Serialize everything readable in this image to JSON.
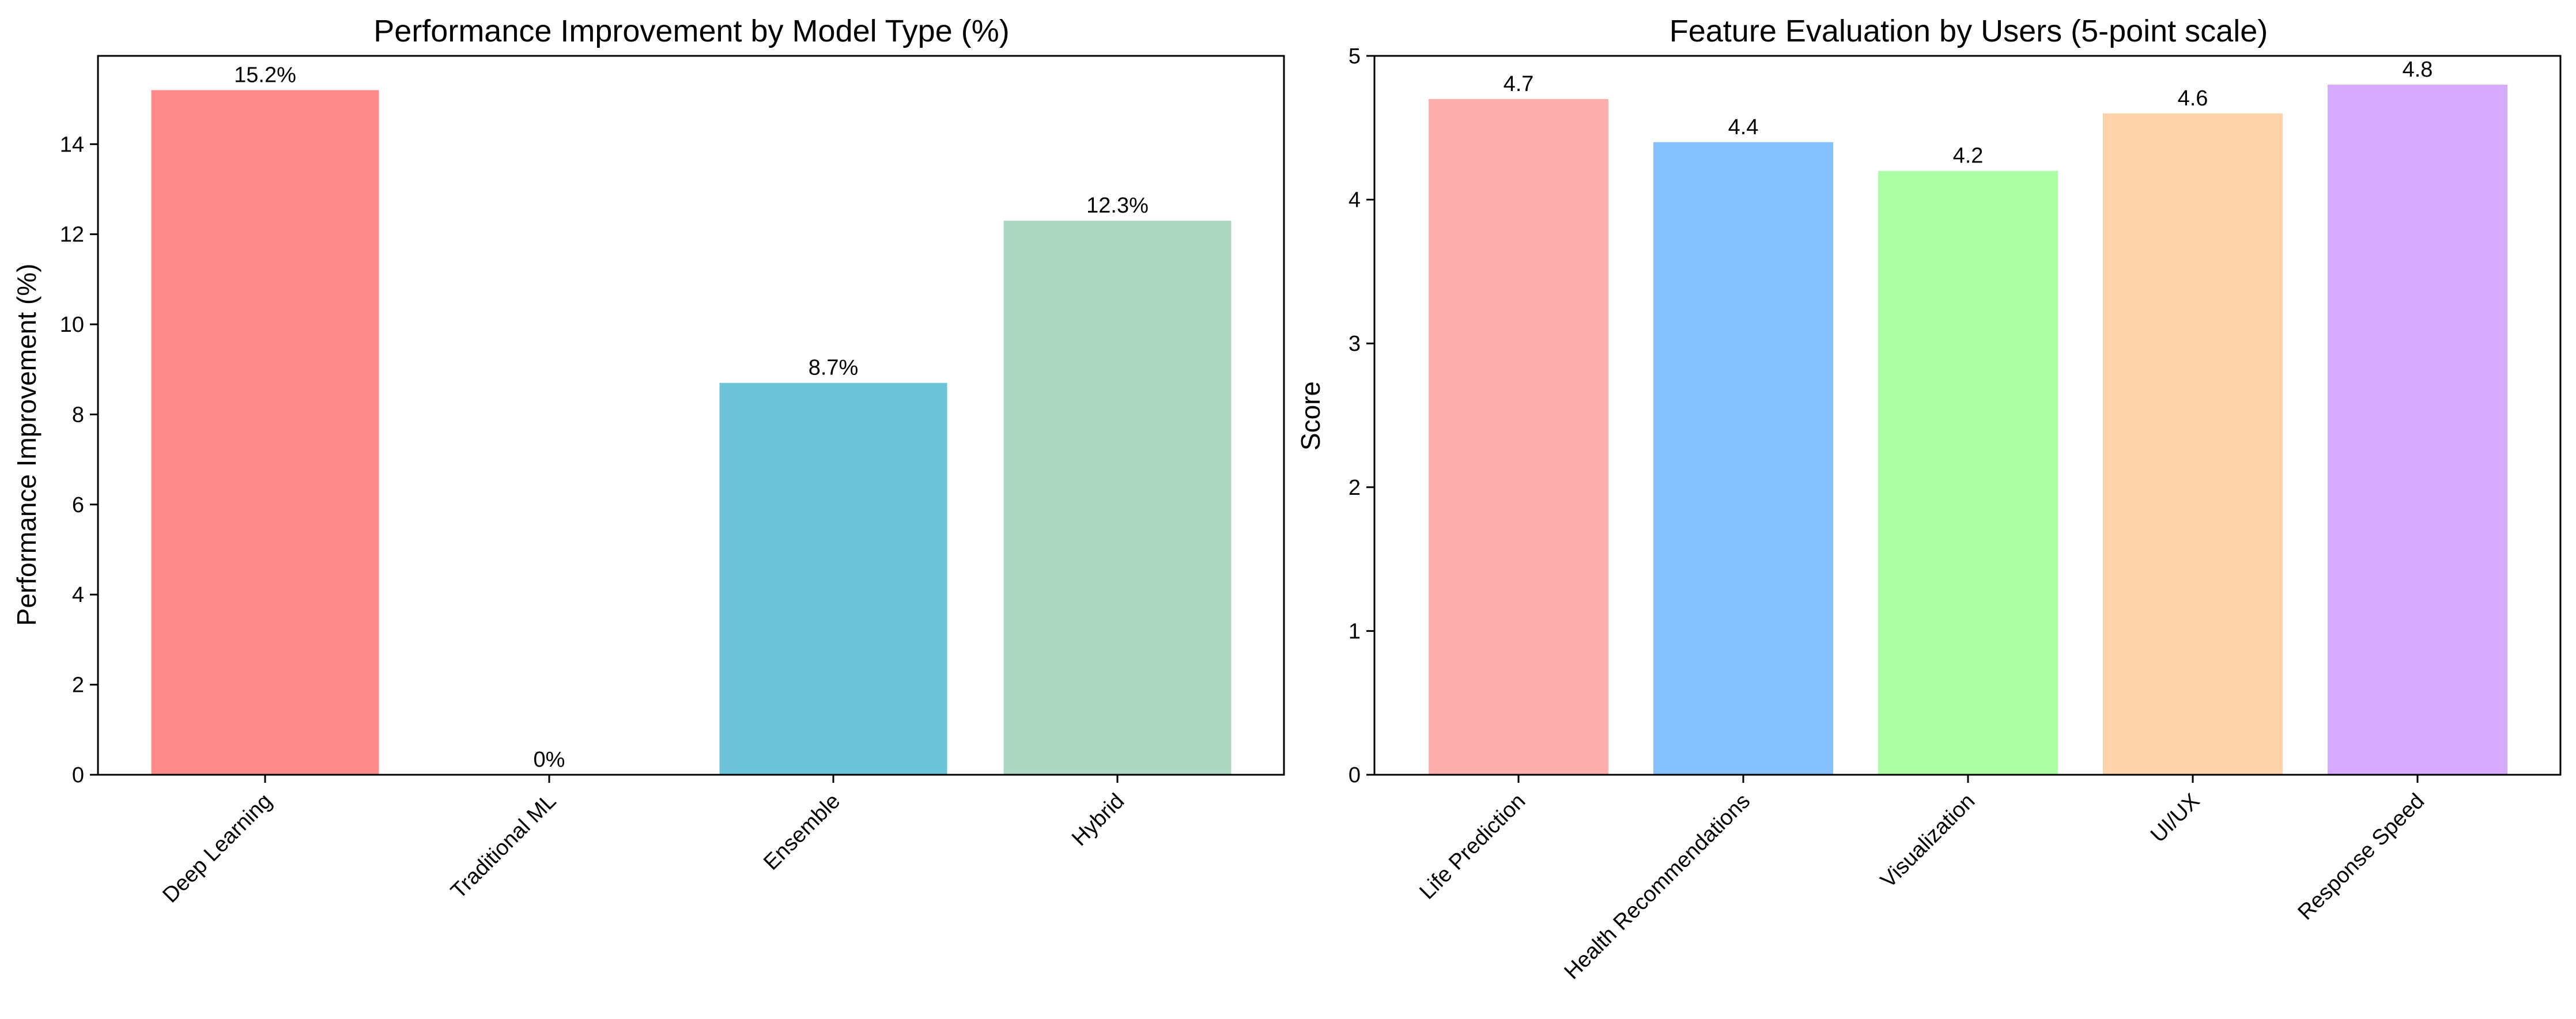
{
  "chart_data": [
    {
      "type": "bar",
      "title": "Performance Improvement by Model Type (%)",
      "xlabel": "",
      "ylabel": "Performance Improvement (%)",
      "ylim": [
        0,
        15.96
      ],
      "yticks": [
        0,
        2,
        4,
        6,
        8,
        10,
        12,
        14
      ],
      "categories": [
        "Deep Learning",
        "Traditional ML",
        "Ensemble",
        "Hybrid"
      ],
      "values": [
        15.2,
        0,
        8.7,
        12.3
      ],
      "labels": [
        "15.2%",
        "0%",
        "8.7%",
        "12.3%"
      ],
      "colors": [
        "#ff8a8a",
        "#ff8a8a",
        "#6cc4d9",
        "#acd7c3"
      ],
      "grid": false,
      "x_tick_rotation": 45
    },
    {
      "type": "bar",
      "title": "Feature Evaluation by Users (5-point scale)",
      "xlabel": "",
      "ylabel": "Score",
      "ylim": [
        0,
        5
      ],
      "yticks": [
        0,
        1,
        2,
        3,
        4,
        5
      ],
      "categories": [
        "Life Prediction",
        "Health Recommendations",
        "Visualization",
        "UI/UX",
        "Response Speed"
      ],
      "values": [
        4.7,
        4.4,
        4.2,
        4.6,
        4.8
      ],
      "labels": [
        "4.7",
        "4.4",
        "4.2",
        "4.6",
        "4.8"
      ],
      "colors": [
        "#ffaeae",
        "#85c1ff",
        "#adffa6",
        "#ffd4ab",
        "#d5aaff"
      ],
      "grid": false,
      "x_tick_rotation": 45
    }
  ]
}
